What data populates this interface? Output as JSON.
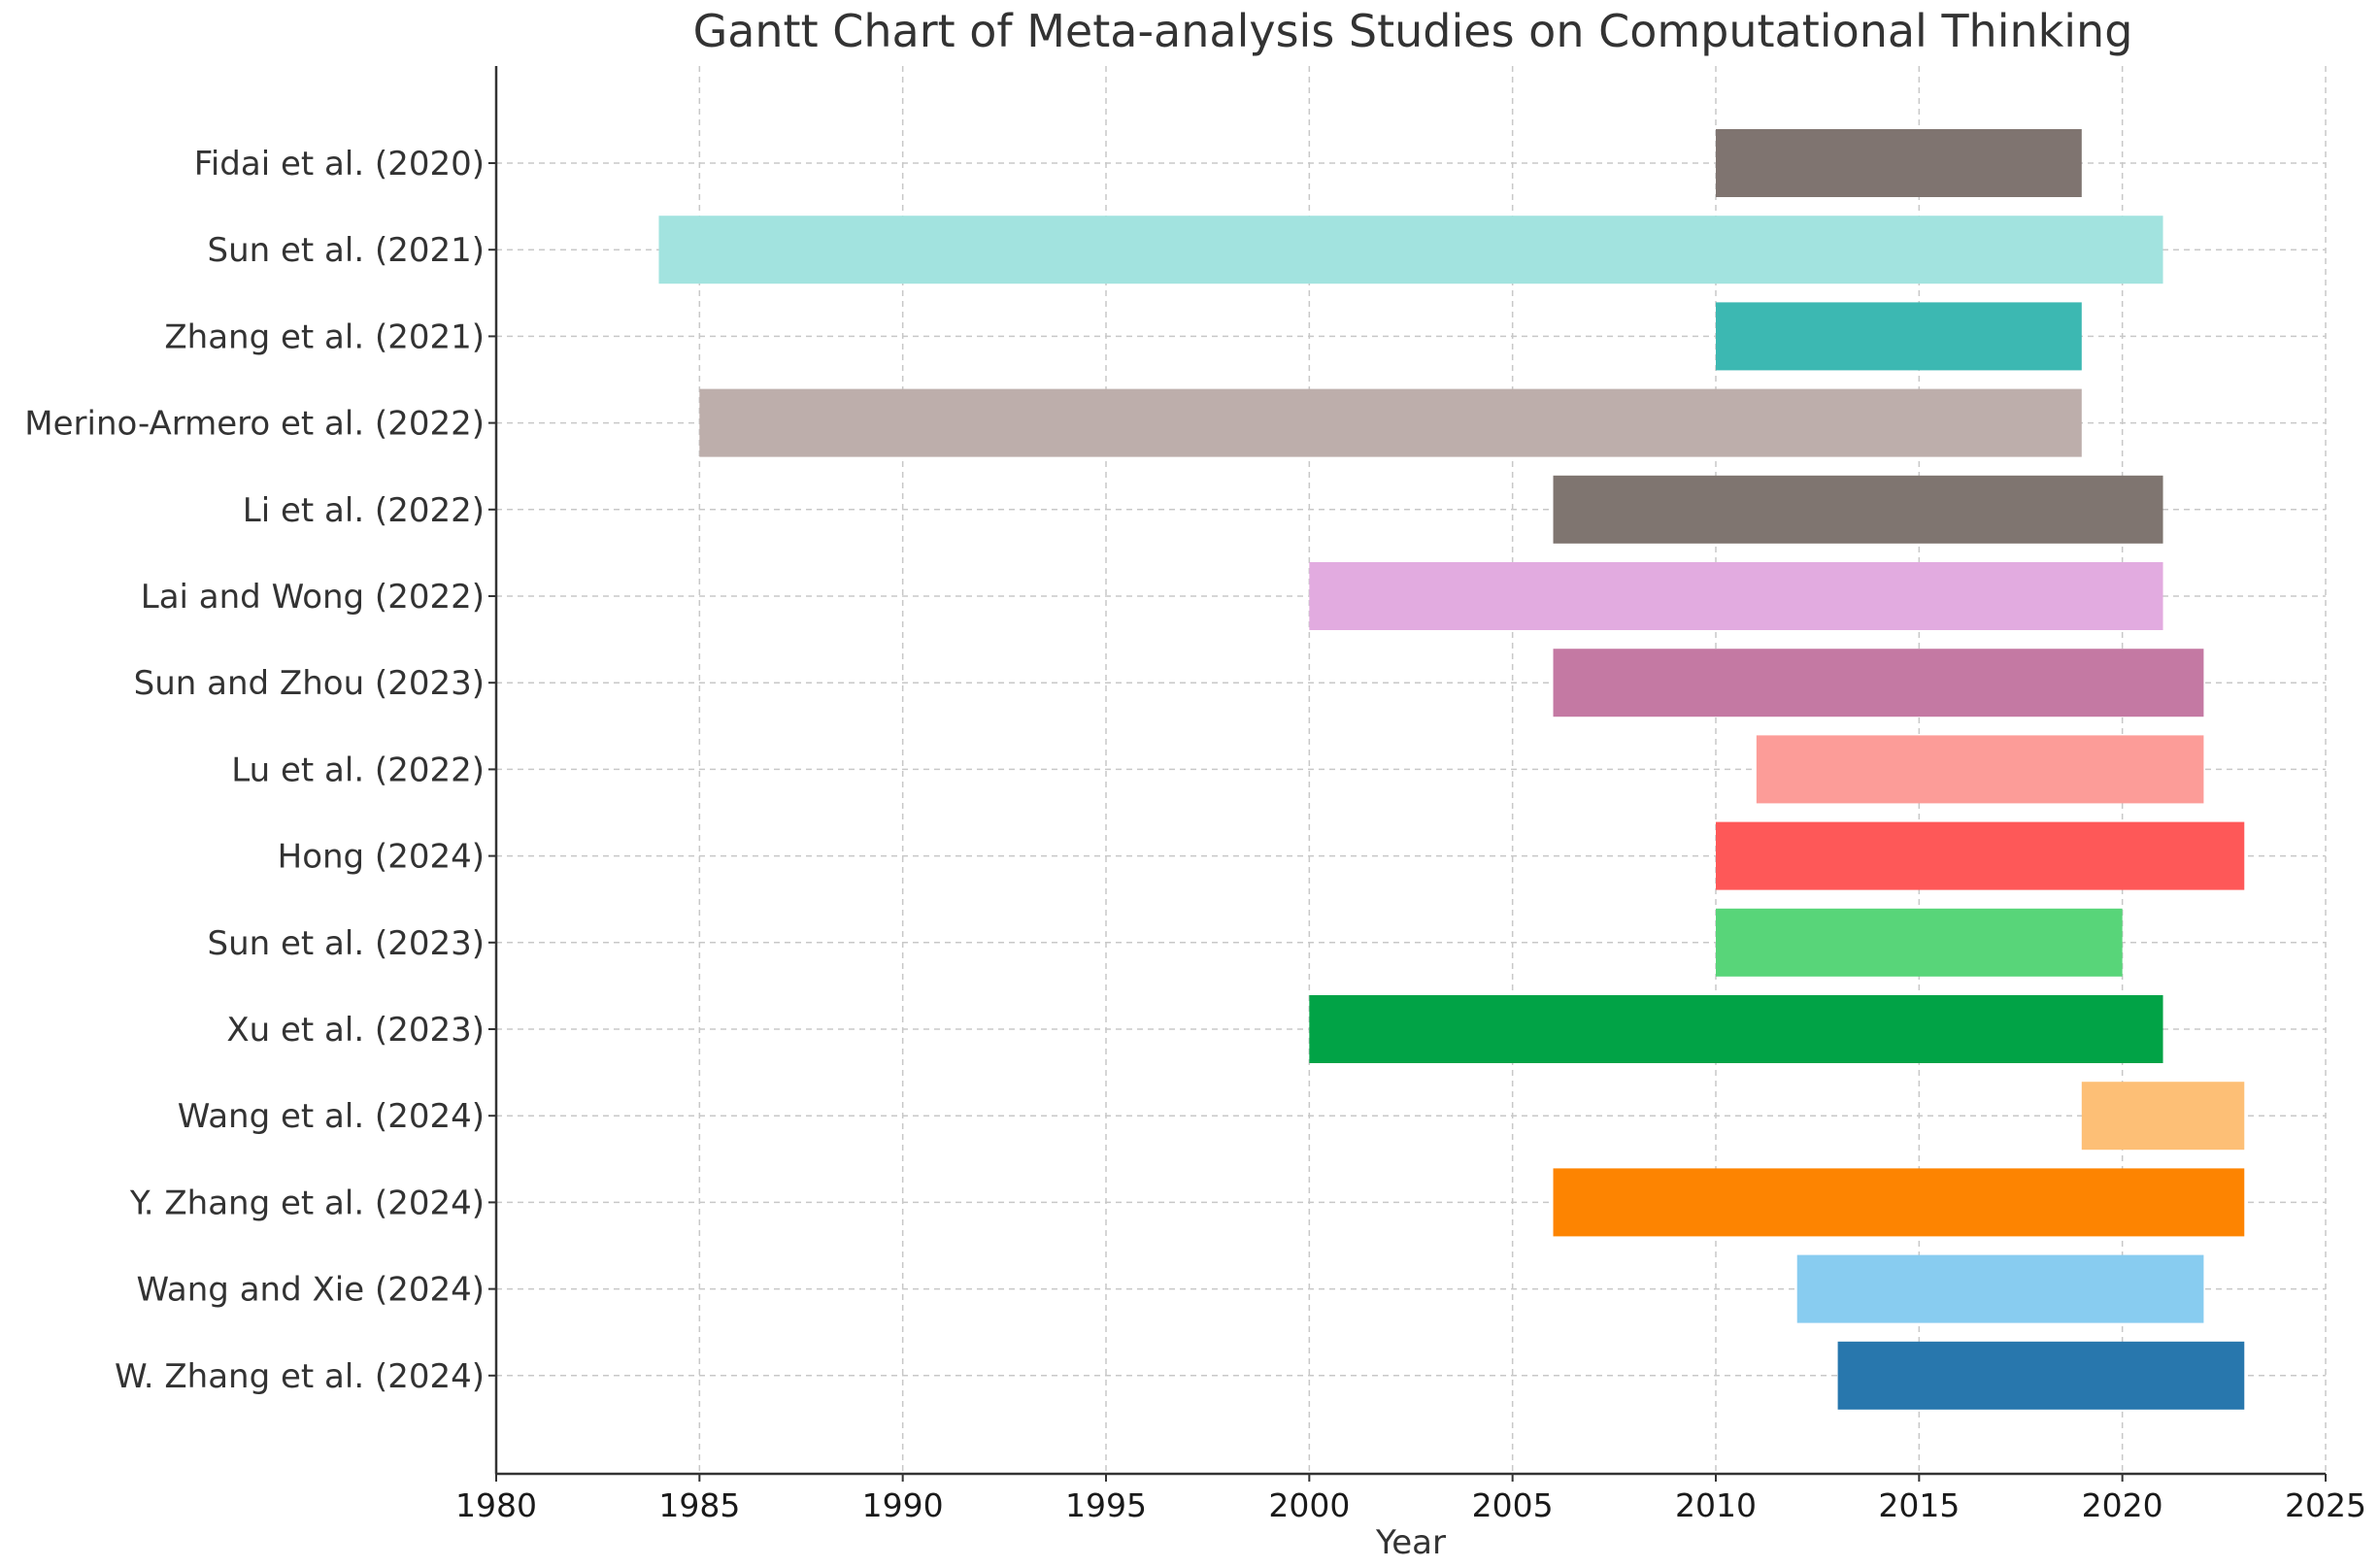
{
  "chart_data": {
    "type": "gantt",
    "title": "Gantt Chart of Meta-analysis Studies on Computational Thinking",
    "xlabel": "Year",
    "ylabel": "",
    "xlim": [
      1980,
      2025
    ],
    "xticks": [
      "1980",
      "1985",
      "1990",
      "1995",
      "2000",
      "2005",
      "2010",
      "2015",
      "2020",
      "2025"
    ],
    "grid": true,
    "tasks": [
      {
        "label": "Fidai et al. (2020)",
        "start": 2010,
        "end": 2019,
        "color": "#7f7470"
      },
      {
        "label": "Sun et al. (2021)",
        "start": 1984,
        "end": 2021,
        "color": "#a2e3df"
      },
      {
        "label": "Zhang et al. (2021)",
        "start": 2010,
        "end": 2019,
        "color": "#3cb8b2"
      },
      {
        "label": "Merino-Armero et al. (2022)",
        "start": 1985,
        "end": 2019,
        "color": "#bdaeab"
      },
      {
        "label": "Li et al. (2022)",
        "start": 2006,
        "end": 2021,
        "color": "#7f7570"
      },
      {
        "label": "Lai and Wong (2022)",
        "start": 2000,
        "end": 2021,
        "color": "#e2abe0"
      },
      {
        "label": "Sun and Zhou (2023)",
        "start": 2006,
        "end": 2022,
        "color": "#c479a3"
      },
      {
        "label": "Lu et al. (2022)",
        "start": 2011,
        "end": 2022,
        "color": "#fc9c98"
      },
      {
        "label": "Hong (2024)",
        "start": 2010,
        "end": 2023,
        "color": "#fe5858"
      },
      {
        "label": "Sun et al. (2023)",
        "start": 2010,
        "end": 2020,
        "color": "#58d579"
      },
      {
        "label": "Xu et al. (2023)",
        "start": 2000,
        "end": 2021,
        "color": "#01a346"
      },
      {
        "label": "Wang et al. (2024)",
        "start": 2019,
        "end": 2023,
        "color": "#fdbf76"
      },
      {
        "label": "Y. Zhang et al. (2024)",
        "start": 2006,
        "end": 2023,
        "color": "#fd8401"
      },
      {
        "label": "Wang and Xie (2024)",
        "start": 2012,
        "end": 2022,
        "color": "#88ccf0"
      },
      {
        "label": "W. Zhang et al. (2024)",
        "start": 2013,
        "end": 2023,
        "color": "#2877ad"
      }
    ]
  }
}
